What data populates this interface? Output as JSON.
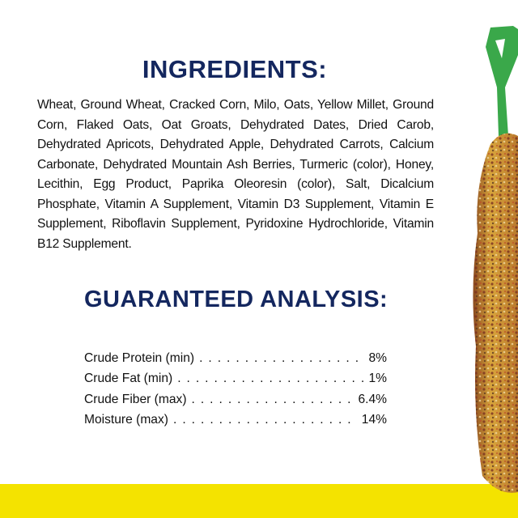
{
  "ingredients": {
    "title": "INGREDIENTS:",
    "text": "Wheat, Ground Wheat, Cracked Corn, Milo, Oats, Yellow Millet, Ground Corn, Flaked Oats, Oat Groats, Dehydrated Dates, Dried Carob, Dehydrated Apricots, Dehydrated Apple, Dehydrated Carrots, Calcium Carbonate, Dehydrated Mountain Ash Berries, Turmeric (color), Honey, Lecithin, Egg Product, Paprika Oleoresin (color), Salt, Dicalcium Phosphate, Vitamin A Supplement, Vitamin D3 Supplement, Vitamin E Supplement, Riboflavin Supplement, Pyridoxine Hydrochloride, Vitamin B12 Supplement."
  },
  "analysis": {
    "title": "GUARANTEED ANALYSIS:",
    "rows": [
      {
        "label": "Crude Protein (min)",
        "value": "8%"
      },
      {
        "label": "Crude Fat (min)",
        "value": "1%"
      },
      {
        "label": "Crude Fiber (max)",
        "value": "6.4%"
      },
      {
        "label": "Moisture (max)",
        "value": "14%"
      }
    ]
  },
  "colors": {
    "heading": "#14275f",
    "band": "#f4e300",
    "hanger": "#3aa84a"
  }
}
